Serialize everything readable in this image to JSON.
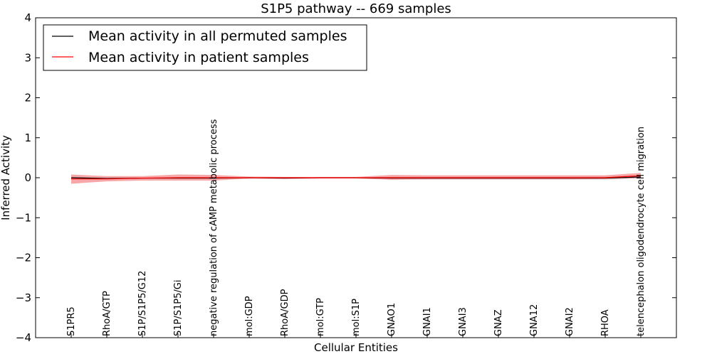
{
  "chart_data": {
    "type": "line",
    "title": "S1P5 pathway -- 669 samples",
    "xlabel": "Cellular Entities",
    "ylabel": "Inferred Activity",
    "ylim": [
      -4,
      4
    ],
    "yticks": [
      4,
      3,
      2,
      1,
      0,
      -1,
      -2,
      -3,
      -4
    ],
    "ytick_labels": [
      "4",
      "3",
      "2",
      "1",
      "0",
      "−1",
      "−2",
      "−3",
      "−4"
    ],
    "grid": false,
    "legend_position": "top-left",
    "categories": [
      "S1PR5",
      "RhoA/GTP",
      "S1P/S1P5/G12",
      "S1P/S1P5/Gi",
      "negative regulation of cAMP metabolic process",
      "mol:GDP",
      "RhoA/GDP",
      "mol:GTP",
      "mol:S1P",
      "GNAO1",
      "GNAI1",
      "GNAI3",
      "GNAZ",
      "GNA12",
      "GNAI2",
      "RHOA",
      "telencephalon oligodendrocyte cell migration"
    ],
    "series": [
      {
        "name": "Mean activity in all permuted samples",
        "color": "#000000",
        "values": [
          0.0,
          -0.02,
          -0.01,
          -0.01,
          -0.01,
          0.0,
          -0.01,
          0.0,
          0.0,
          -0.01,
          -0.01,
          -0.01,
          -0.01,
          -0.01,
          -0.01,
          -0.01,
          0.02
        ],
        "band_lower": [
          -0.02,
          -0.04,
          -0.03,
          -0.03,
          -0.03,
          -0.01,
          -0.02,
          -0.01,
          -0.01,
          -0.04,
          -0.05,
          -0.05,
          -0.05,
          -0.05,
          -0.05,
          -0.06,
          -0.02
        ],
        "band_upper": [
          0.02,
          0.01,
          0.01,
          0.01,
          0.01,
          0.01,
          0.01,
          0.01,
          0.01,
          0.03,
          0.03,
          0.03,
          0.03,
          0.03,
          0.03,
          0.04,
          0.06
        ]
      },
      {
        "name": "Mean activity in patient samples",
        "color": "#ff0000",
        "values": [
          -0.03,
          -0.03,
          -0.01,
          0.0,
          0.0,
          0.0,
          0.0,
          0.0,
          0.0,
          0.0,
          0.0,
          0.0,
          0.0,
          0.0,
          0.0,
          0.0,
          0.05
        ],
        "band_lower": [
          -0.15,
          -0.09,
          -0.07,
          -0.07,
          -0.07,
          -0.02,
          -0.03,
          -0.02,
          -0.02,
          -0.05,
          -0.04,
          -0.04,
          -0.04,
          -0.04,
          -0.04,
          -0.03,
          -0.01
        ],
        "band_upper": [
          0.08,
          0.04,
          0.04,
          0.08,
          0.07,
          0.03,
          0.02,
          0.02,
          0.02,
          0.07,
          0.06,
          0.06,
          0.06,
          0.06,
          0.06,
          0.06,
          0.12
        ]
      }
    ]
  }
}
